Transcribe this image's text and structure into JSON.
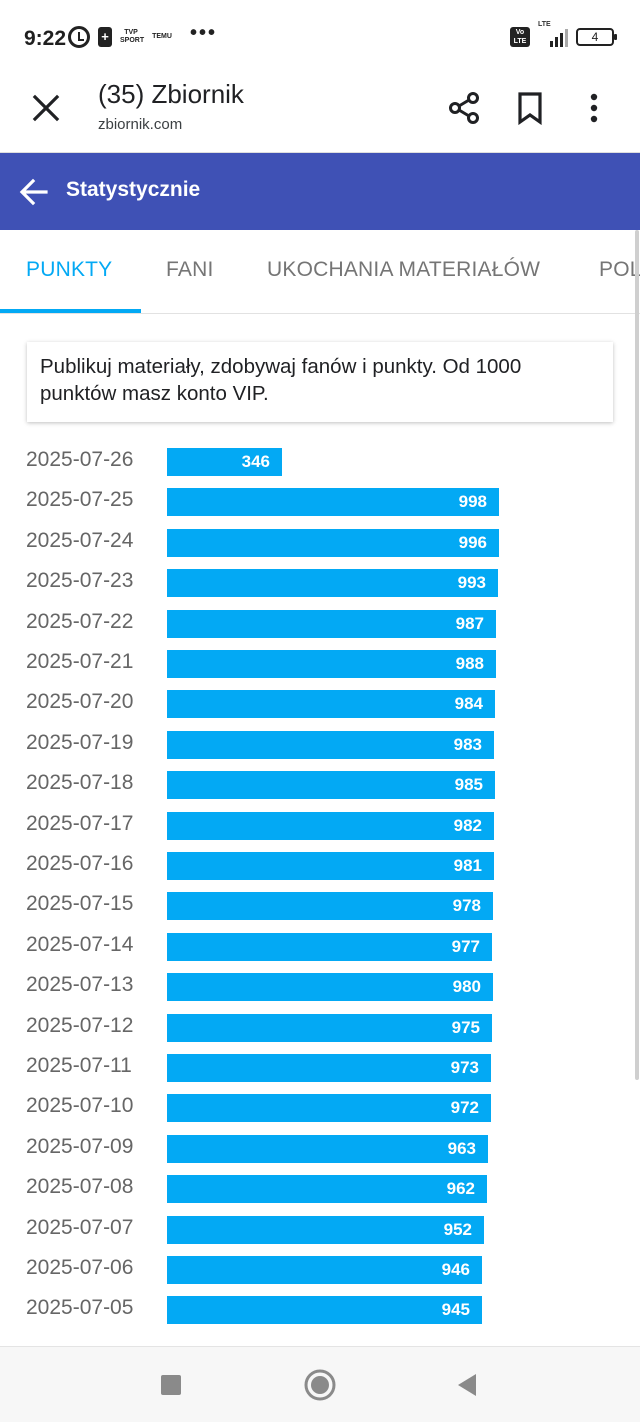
{
  "status_bar": {
    "time": "9:22",
    "icons": [
      "alarm-icon",
      "battery-saver-icon",
      "tvp-sport-icon",
      "temu-icon",
      "more-notifications-icon",
      "volte-icon",
      "signal-icon",
      "battery-icon"
    ],
    "tvp_sport": "TVP SPORT",
    "temu": "TEMU",
    "more": "•••",
    "volte": "Vo LTE",
    "lte": "LTE",
    "battery": "4"
  },
  "browser": {
    "title": "(35) Zbiornik",
    "url": "zbiornik.com",
    "icons": [
      "close-icon",
      "share-icon",
      "bookmark-icon",
      "more-vert-icon"
    ]
  },
  "appbar": {
    "title": "Statystycznie",
    "back_icon": "arrow-back-icon",
    "color": "#3f51b5"
  },
  "tabs": [
    {
      "label": "PUNKTY",
      "active": true
    },
    {
      "label": "FANI",
      "active": false
    },
    {
      "label": "UKOCHANIA MATERIAŁÓW",
      "active": false
    },
    {
      "label": "POL",
      "active": false
    }
  ],
  "info_text": "Publikuj materiały, zdobywaj fanów i punkty. Od 1000 punktów masz konto VIP.",
  "colors": {
    "accent": "#03a9f4",
    "bar": "#03a9f4"
  },
  "chart_data": {
    "type": "bar",
    "orientation": "horizontal",
    "categories": [
      "2025-07-26",
      "2025-07-25",
      "2025-07-24",
      "2025-07-23",
      "2025-07-22",
      "2025-07-21",
      "2025-07-20",
      "2025-07-19",
      "2025-07-18",
      "2025-07-17",
      "2025-07-16",
      "2025-07-15",
      "2025-07-14",
      "2025-07-13",
      "2025-07-12",
      "2025-07-11",
      "2025-07-10",
      "2025-07-09",
      "2025-07-08",
      "2025-07-07",
      "2025-07-06",
      "2025-07-05"
    ],
    "values": [
      346,
      998,
      996,
      993,
      987,
      988,
      984,
      983,
      985,
      982,
      981,
      978,
      977,
      980,
      975,
      973,
      972,
      963,
      962,
      952,
      946,
      945
    ],
    "xlim": [
      0,
      1000
    ],
    "title": "",
    "xlabel": "",
    "ylabel": ""
  },
  "navbar": {
    "icons": [
      "recent-apps-icon",
      "home-icon",
      "back-icon"
    ]
  }
}
